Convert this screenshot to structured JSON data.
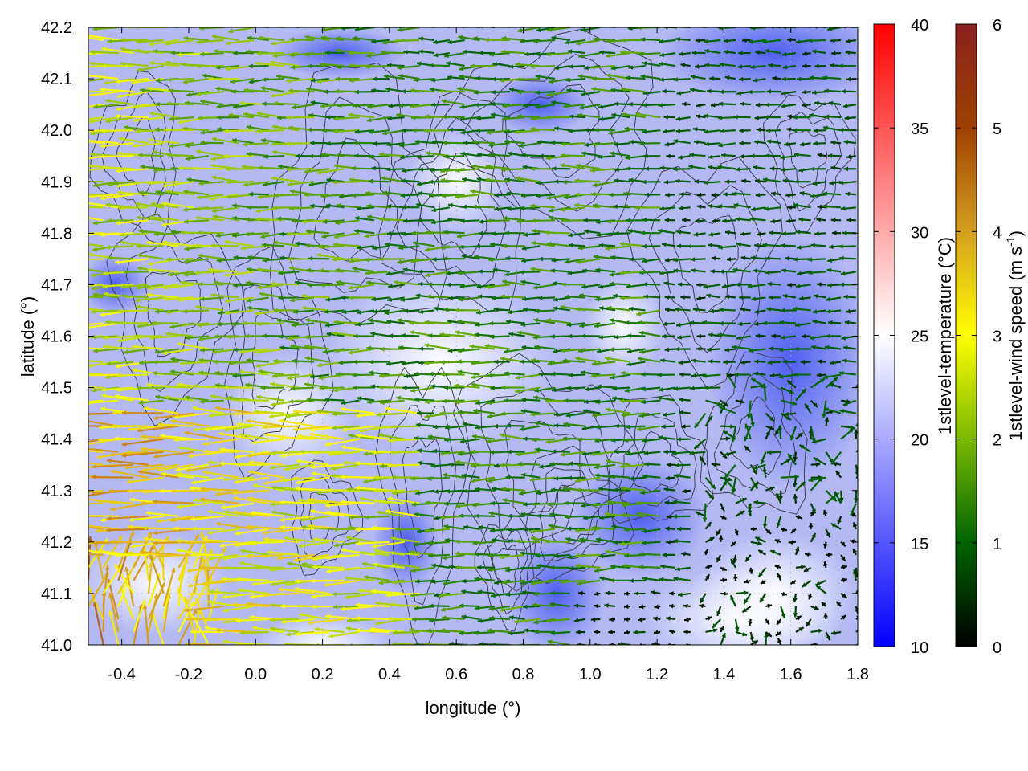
{
  "chart_data": {
    "type": "vector-field-map",
    "xlabel": "longitude (°)",
    "ylabel": "latitude (°)",
    "xlim": [
      -0.5,
      1.8
    ],
    "ylim": [
      41.0,
      42.2
    ],
    "xticks": [
      "-0.4",
      "-0.2",
      "0.0",
      "0.2",
      "0.4",
      "0.6",
      "0.8",
      "1.0",
      "1.2",
      "1.4",
      "1.6",
      "1.8"
    ],
    "xtick_values": [
      -0.4,
      -0.2,
      0.0,
      0.2,
      0.4,
      0.6,
      0.8,
      1.0,
      1.2,
      1.4,
      1.6,
      1.8
    ],
    "yticks": [
      "41.0",
      "41.1",
      "41.2",
      "41.3",
      "41.4",
      "41.5",
      "41.6",
      "41.7",
      "41.8",
      "41.9",
      "42.0",
      "42.1",
      "42.2"
    ],
    "ytick_values": [
      41.0,
      41.1,
      41.2,
      41.3,
      41.4,
      41.5,
      41.6,
      41.7,
      41.8,
      41.9,
      42.0,
      42.1,
      42.2
    ],
    "grid": true,
    "colorbars": [
      {
        "label": "1stlevel-temperature (°C)",
        "range": [
          10,
          40
        ],
        "ticks": [
          "10",
          "15",
          "20",
          "25",
          "30",
          "35",
          "40"
        ],
        "tick_values": [
          10,
          15,
          20,
          25,
          30,
          35,
          40
        ],
        "colors": [
          "#0000ff",
          "#ffffff",
          "#ff0000"
        ]
      },
      {
        "label_main": "1stlevel-wind speed (m s",
        "label_sup": "-1",
        "label_end": ")",
        "range": [
          0,
          6
        ],
        "ticks": [
          "0",
          "1",
          "2",
          "3",
          "4",
          "5",
          "6"
        ],
        "tick_values": [
          0,
          1,
          2,
          3,
          4,
          5,
          6
        ],
        "colors": [
          "#000000",
          "#006400",
          "#7ab800",
          "#ffff00",
          "#d4a020",
          "#a04000",
          "#8b2020"
        ]
      }
    ],
    "temperature_range_shown": [
      15,
      26
    ],
    "wind_direction": "predominantly westward (easterly flow)",
    "wind_speed_range_shown": [
      0,
      6
    ]
  }
}
